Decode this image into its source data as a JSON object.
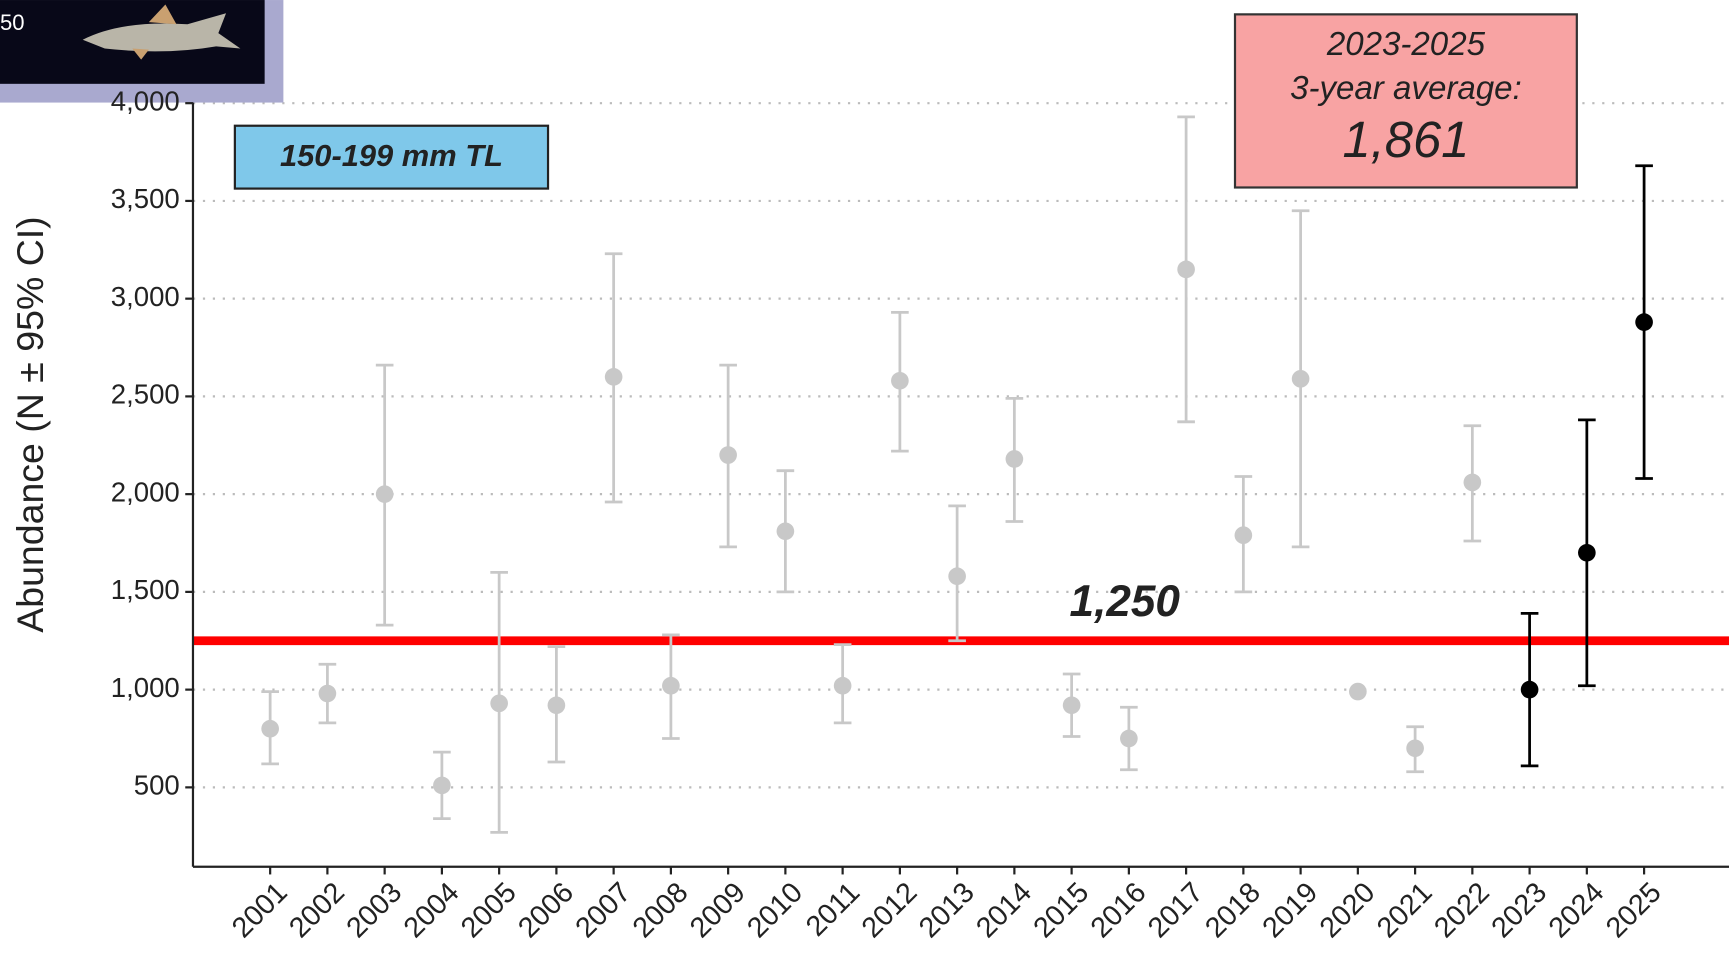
{
  "chart_data": {
    "type": "errorbar",
    "y_label": "Abundance (N ± 95% CI)",
    "inset_text": "50",
    "size_class_label": "150-199 mm TL",
    "average_box": {
      "line1": "2023-2025",
      "line2": "3-year average:",
      "value": "1,861"
    },
    "threshold": {
      "value": 1250,
      "label": "1,250",
      "color": "#ff0000"
    },
    "categories": [
      "2001",
      "2002",
      "2003",
      "2004",
      "2005",
      "2006",
      "2007",
      "2008",
      "2009",
      "2010",
      "2011",
      "2012",
      "2013",
      "2014",
      "2015",
      "2016",
      "2017",
      "2018",
      "2019",
      "2020",
      "2021",
      "2022",
      "2023",
      "2024",
      "2025"
    ],
    "series": [
      {
        "values": [
          800,
          980,
          2000,
          510,
          930,
          920,
          2600,
          1020,
          2200,
          1810,
          1020,
          2580,
          1580,
          2180,
          920,
          750,
          3150,
          1790,
          2590,
          990,
          700,
          2060,
          1000,
          1700,
          2880
        ],
        "lower": [
          620,
          830,
          1330,
          340,
          270,
          630,
          1960,
          750,
          1730,
          1500,
          830,
          2220,
          1250,
          1860,
          760,
          590,
          2370,
          1500,
          1730,
          null,
          580,
          1760,
          610,
          1020,
          2080
        ],
        "upper": [
          990,
          1130,
          2660,
          680,
          1600,
          1220,
          3230,
          1280,
          2660,
          2120,
          1230,
          2930,
          1940,
          2490,
          1080,
          910,
          3930,
          2090,
          3450,
          null,
          810,
          2350,
          1390,
          2380,
          3680
        ],
        "colors": [
          "#c8c8c8",
          "#c8c8c8",
          "#c8c8c8",
          "#c8c8c8",
          "#c8c8c8",
          "#c8c8c8",
          "#c8c8c8",
          "#c8c8c8",
          "#c8c8c8",
          "#c8c8c8",
          "#c8c8c8",
          "#c8c8c8",
          "#c8c8c8",
          "#c8c8c8",
          "#c8c8c8",
          "#c8c8c8",
          "#c8c8c8",
          "#c8c8c8",
          "#c8c8c8",
          "#c8c8c8",
          "#c8c8c8",
          "#c8c8c8",
          "#000000",
          "#000000",
          "#000000"
        ]
      }
    ],
    "ylim": [
      94,
      4020
    ],
    "yticks": [
      500,
      {
        "value": 1000,
        "label": "1,000"
      },
      {
        "value": 1500,
        "label": "1,500"
      },
      {
        "value": 2000,
        "label": "2,000"
      },
      {
        "value": 2500,
        "label": "2,500"
      },
      {
        "value": 3000,
        "label": "3,000"
      },
      {
        "value": 3500,
        "label": "3,500"
      },
      {
        "value": 4000,
        "label": "4,000"
      }
    ],
    "grid": true
  }
}
